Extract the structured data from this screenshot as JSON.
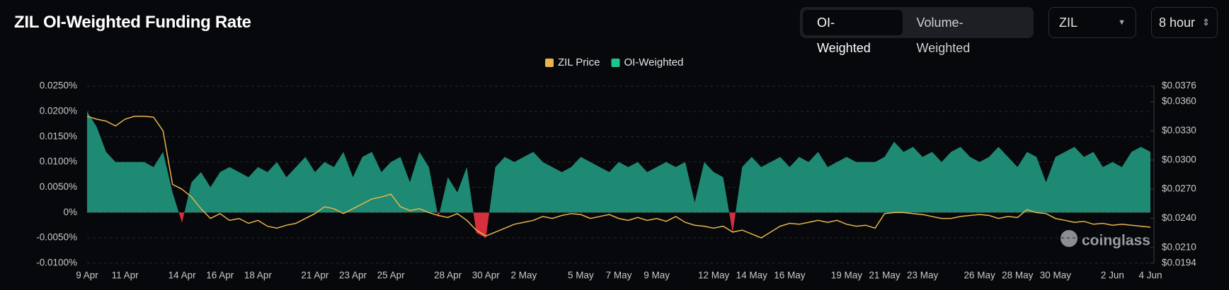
{
  "header": {
    "title": "ZIL OI-Weighted Funding Rate"
  },
  "controls": {
    "tabs": [
      "OI-Weighted",
      "Volume-Weighted"
    ],
    "symbol": "ZIL",
    "interval": "8 hour"
  },
  "watermark": "coinglass",
  "chart_data": {
    "type": "line",
    "categories": [
      "9 Apr",
      null,
      null,
      null,
      "11 Apr",
      null,
      null,
      null,
      null,
      null,
      "14 Apr",
      null,
      null,
      null,
      "16 Apr",
      null,
      null,
      null,
      "18 Apr",
      null,
      null,
      null,
      null,
      null,
      "21 Apr",
      null,
      null,
      null,
      "23 Apr",
      null,
      null,
      null,
      "25 Apr",
      null,
      null,
      null,
      null,
      null,
      "28 Apr",
      null,
      null,
      null,
      "30 Apr",
      null,
      null,
      null,
      "2 May",
      null,
      null,
      null,
      null,
      null,
      "5 May",
      null,
      null,
      null,
      "7 May",
      null,
      null,
      null,
      "9 May",
      null,
      null,
      null,
      null,
      null,
      "12 May",
      null,
      null,
      null,
      "14 May",
      null,
      null,
      null,
      "16 May",
      null,
      null,
      null,
      null,
      null,
      "19 May",
      null,
      null,
      null,
      "21 May",
      null,
      null,
      null,
      "23 May",
      null,
      null,
      null,
      null,
      null,
      "26 May",
      null,
      null,
      null,
      "28 May",
      null,
      null,
      null,
      "30 May",
      null,
      null,
      null,
      null,
      null,
      "2 Jun",
      null,
      null,
      null,
      "4 Jun"
    ],
    "series": [
      {
        "name": "ZIL Price",
        "color": "#e9b44c",
        "axis": "y2",
        "values": [
          0.0345,
          0.0342,
          0.034,
          0.0335,
          0.0342,
          0.0345,
          0.0345,
          0.0344,
          0.033,
          0.0275,
          0.027,
          0.0262,
          0.025,
          0.024,
          0.0245,
          0.0238,
          0.024,
          0.0235,
          0.0238,
          0.0232,
          0.023,
          0.0233,
          0.0235,
          0.024,
          0.0245,
          0.0252,
          0.025,
          0.0245,
          0.025,
          0.0255,
          0.026,
          0.0262,
          0.0265,
          0.0252,
          0.0248,
          0.025,
          0.0246,
          0.0243,
          0.0241,
          0.0245,
          0.0238,
          0.0228,
          0.0222,
          0.0226,
          0.023,
          0.0234,
          0.0236,
          0.0238,
          0.0242,
          0.024,
          0.0243,
          0.0245,
          0.0244,
          0.024,
          0.0242,
          0.0244,
          0.024,
          0.0238,
          0.0241,
          0.0238,
          0.024,
          0.0237,
          0.0242,
          0.0236,
          0.0233,
          0.0232,
          0.023,
          0.0232,
          0.0226,
          0.0228,
          0.0224,
          0.022,
          0.0226,
          0.0232,
          0.0235,
          0.0234,
          0.0236,
          0.0238,
          0.0236,
          0.0238,
          0.0234,
          0.0232,
          0.0233,
          0.023,
          0.0245,
          0.0246,
          0.0246,
          0.0245,
          0.0244,
          0.0242,
          0.024,
          0.024,
          0.0242,
          0.0243,
          0.0244,
          0.0243,
          0.024,
          0.0242,
          0.0241,
          0.0249,
          0.0246,
          0.0245,
          0.024,
          0.0238,
          0.0236,
          0.0237,
          0.0234,
          0.0235,
          0.0233,
          0.0234,
          0.0233,
          0.0232,
          0.0231
        ]
      },
      {
        "name": "OI-Weighted",
        "color": "#1fc48e",
        "fill": "#1e8a73",
        "negative_color": "#d6303f",
        "values": [
          0.02,
          0.017,
          0.012,
          0.01,
          0.01,
          0.01,
          0.01,
          0.009,
          0.012,
          0.004,
          -0.002,
          0.006,
          0.008,
          0.005,
          0.008,
          0.009,
          0.008,
          0.007,
          0.009,
          0.008,
          0.01,
          0.007,
          0.009,
          0.011,
          0.008,
          0.01,
          0.009,
          0.012,
          0.007,
          0.011,
          0.012,
          0.008,
          0.01,
          0.011,
          0.006,
          0.012,
          0.009,
          -0.001,
          0.007,
          0.004,
          0.009,
          -0.004,
          -0.005,
          0.009,
          0.011,
          0.01,
          0.011,
          0.012,
          0.01,
          0.009,
          0.008,
          0.009,
          0.011,
          0.01,
          0.009,
          0.008,
          0.01,
          0.009,
          0.01,
          0.008,
          0.009,
          0.01,
          0.009,
          0.01,
          0.002,
          0.01,
          0.008,
          0.007,
          -0.004,
          0.009,
          0.011,
          0.009,
          0.01,
          0.011,
          0.009,
          0.011,
          0.01,
          0.012,
          0.009,
          0.01,
          0.011,
          0.01,
          0.01,
          0.01,
          0.011,
          0.014,
          0.012,
          0.013,
          0.011,
          0.012,
          0.01,
          0.012,
          0.013,
          0.011,
          0.01,
          0.011,
          0.013,
          0.011,
          0.009,
          0.012,
          0.011,
          0.006,
          0.011,
          0.012,
          0.013,
          0.011,
          0.012,
          0.009,
          0.01,
          0.009,
          0.012,
          0.013,
          0.012
        ]
      }
    ],
    "ylim": [
      -0.01,
      0.025
    ],
    "yticks": [
      {
        "value": -0.01,
        "label": "-0.0100%"
      },
      {
        "value": -0.005,
        "label": "-0.0050%"
      },
      {
        "value": 0,
        "label": "0%"
      },
      {
        "value": 0.005,
        "label": "0.0050%"
      },
      {
        "value": 0.01,
        "label": "0.0100%"
      },
      {
        "value": 0.015,
        "label": "0.0150%"
      },
      {
        "value": 0.02,
        "label": "0.0200%"
      },
      {
        "value": 0.025,
        "label": "0.0250%"
      }
    ],
    "y2lim": [
      0.0194,
      0.0376
    ],
    "y2ticks": [
      {
        "value": 0.0194,
        "label": "$0.0194"
      },
      {
        "value": 0.021,
        "label": "$0.0210"
      },
      {
        "value": 0.024,
        "label": "$0.0240"
      },
      {
        "value": 0.027,
        "label": "$0.0270"
      },
      {
        "value": 0.03,
        "label": "$0.0300"
      },
      {
        "value": 0.033,
        "label": "$0.0330"
      },
      {
        "value": 0.036,
        "label": "$0.0360"
      },
      {
        "value": 0.0376,
        "label": "$0.0376"
      }
    ],
    "grid": true,
    "legend": "top"
  }
}
